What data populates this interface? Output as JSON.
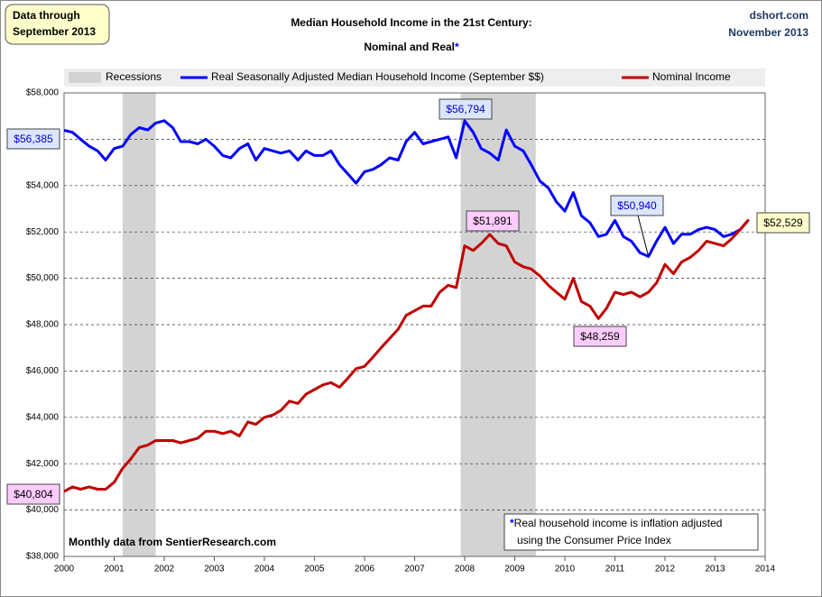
{
  "chart_data": {
    "type": "line",
    "title": "Median Household Income in the 21st Century:",
    "subtitle": "Nominal and Real",
    "subtitle_mark": "*",
    "data_note": [
      "Data through",
      "September 2013"
    ],
    "site": "dshort.com",
    "date": "November 2013",
    "source": "Monthly data from SentierResearch.com",
    "footnote_mark": "*",
    "footnote": [
      "Real household  income is inflation adjusted",
      "using  the Consumer Price Index"
    ],
    "recession_label": "Recessions",
    "recession_color": "#d3d3d3",
    "recessions": [
      [
        2001.17,
        2001.83
      ],
      [
        2007.92,
        2009.42
      ]
    ],
    "x": [
      2000,
      2000.17,
      2000.33,
      2000.5,
      2000.67,
      2000.83,
      2001,
      2001.17,
      2001.33,
      2001.5,
      2001.67,
      2001.83,
      2002,
      2002.17,
      2002.33,
      2002.5,
      2002.67,
      2002.83,
      2003,
      2003.17,
      2003.33,
      2003.5,
      2003.67,
      2003.83,
      2004,
      2004.17,
      2004.33,
      2004.5,
      2004.67,
      2004.83,
      2005,
      2005.17,
      2005.33,
      2005.5,
      2005.67,
      2005.83,
      2006,
      2006.17,
      2006.33,
      2006.5,
      2006.67,
      2006.83,
      2007,
      2007.17,
      2007.33,
      2007.5,
      2007.67,
      2007.83,
      2008,
      2008.17,
      2008.33,
      2008.5,
      2008.67,
      2008.83,
      2009,
      2009.17,
      2009.33,
      2009.5,
      2009.67,
      2009.83,
      2010,
      2010.17,
      2010.33,
      2010.5,
      2010.67,
      2010.83,
      2011,
      2011.17,
      2011.33,
      2011.5,
      2011.67,
      2011.83,
      2012,
      2012.17,
      2012.33,
      2012.5,
      2012.67,
      2012.83,
      2013,
      2013.17,
      2013.33,
      2013.5,
      2013.67
    ],
    "series": [
      {
        "name": "Real Seasonally Adjusted Median Household Income (September $$)",
        "color": "#0000ff",
        "values": [
          56385,
          56300,
          56000,
          55700,
          55500,
          55100,
          55600,
          55700,
          56200,
          56500,
          56400,
          56700,
          56800,
          56500,
          55900,
          55900,
          55800,
          56000,
          55700,
          55300,
          55200,
          55600,
          55800,
          55100,
          55600,
          55500,
          55400,
          55500,
          55100,
          55500,
          55300,
          55300,
          55500,
          54900,
          54500,
          54100,
          54600,
          54700,
          54900,
          55200,
          55100,
          55900,
          56300,
          55800,
          55900,
          56000,
          56100,
          55200,
          56794,
          56300,
          55600,
          55400,
          55100,
          56400,
          55700,
          55500,
          54900,
          54200,
          53900,
          53300,
          52900,
          53700,
          52700,
          52400,
          51800,
          51900,
          52500,
          51800,
          51600,
          51100,
          50940,
          51600,
          52200,
          51500,
          51900,
          51900,
          52100,
          52200,
          52100,
          51800,
          51900,
          52100,
          52529
        ]
      },
      {
        "name": "Nominal Income",
        "color": "#c00000",
        "values": [
          40804,
          41000,
          40900,
          41000,
          40900,
          40900,
          41200,
          41800,
          42200,
          42700,
          42800,
          43000,
          43000,
          43000,
          42900,
          43000,
          43100,
          43400,
          43400,
          43300,
          43400,
          43200,
          43800,
          43700,
          44000,
          44100,
          44300,
          44700,
          44600,
          45000,
          45200,
          45400,
          45500,
          45300,
          45700,
          46100,
          46200,
          46600,
          47000,
          47400,
          47800,
          48400,
          48600,
          48800,
          48800,
          49400,
          49700,
          49600,
          51400,
          51200,
          51500,
          51891,
          51500,
          51400,
          50700,
          50500,
          50400,
          50100,
          49700,
          49400,
          49100,
          50000,
          49000,
          48800,
          48259,
          48700,
          49400,
          49300,
          49400,
          49200,
          49400,
          49800,
          50600,
          50200,
          50700,
          50900,
          51200,
          51600,
          51500,
          51400,
          51700,
          52100,
          52529
        ]
      }
    ],
    "annotations": [
      {
        "label": "$56,385",
        "x": 2000,
        "y": 56385,
        "box_color": "#dce6ff",
        "text_color": "#0000cc"
      },
      {
        "label": "$56,794",
        "x": 2008,
        "y": 56794,
        "box_color": "#dce6ff",
        "text_color": "#0000cc"
      },
      {
        "label": "$51,891",
        "x": 2008.5,
        "y": 51891,
        "box_color": "#ffccff",
        "text_color": "#000000"
      },
      {
        "label": "$50,940",
        "x": 2011.67,
        "y": 50940,
        "box_color": "#dce6ff",
        "text_color": "#0000cc"
      },
      {
        "label": "$48,259",
        "x": 2010.67,
        "y": 48259,
        "box_color": "#ffccff",
        "text_color": "#000000"
      },
      {
        "label": "$52,529",
        "x": 2013.67,
        "y": 52529,
        "box_color": "#ffffcc",
        "text_color": "#000000"
      },
      {
        "label": "$40,804",
        "x": 2000,
        "y": 40804,
        "box_color": "#ffccff",
        "text_color": "#000000"
      }
    ],
    "xlim": [
      2000,
      2014
    ],
    "xticks": [
      2000,
      2001,
      2002,
      2003,
      2004,
      2005,
      2006,
      2007,
      2008,
      2009,
      2010,
      2011,
      2012,
      2013,
      2014
    ],
    "ylim": [
      38000,
      58000
    ],
    "yticks": [
      {
        "value": 38000,
        "label": "$38,000"
      },
      {
        "value": 40000,
        "label": "$40,000"
      },
      {
        "value": 42000,
        "label": "$42,000"
      },
      {
        "value": 44000,
        "label": "$44,000"
      },
      {
        "value": 46000,
        "label": "$46,000"
      },
      {
        "value": 48000,
        "label": "$48,000"
      },
      {
        "value": 50000,
        "label": "$50,000"
      },
      {
        "value": 52000,
        "label": "$52,000"
      },
      {
        "value": 54000,
        "label": "$54,000"
      },
      {
        "value": 56000,
        "label": "$56,000"
      },
      {
        "value": 58000,
        "label": "$58,000"
      }
    ],
    "grid": true
  }
}
